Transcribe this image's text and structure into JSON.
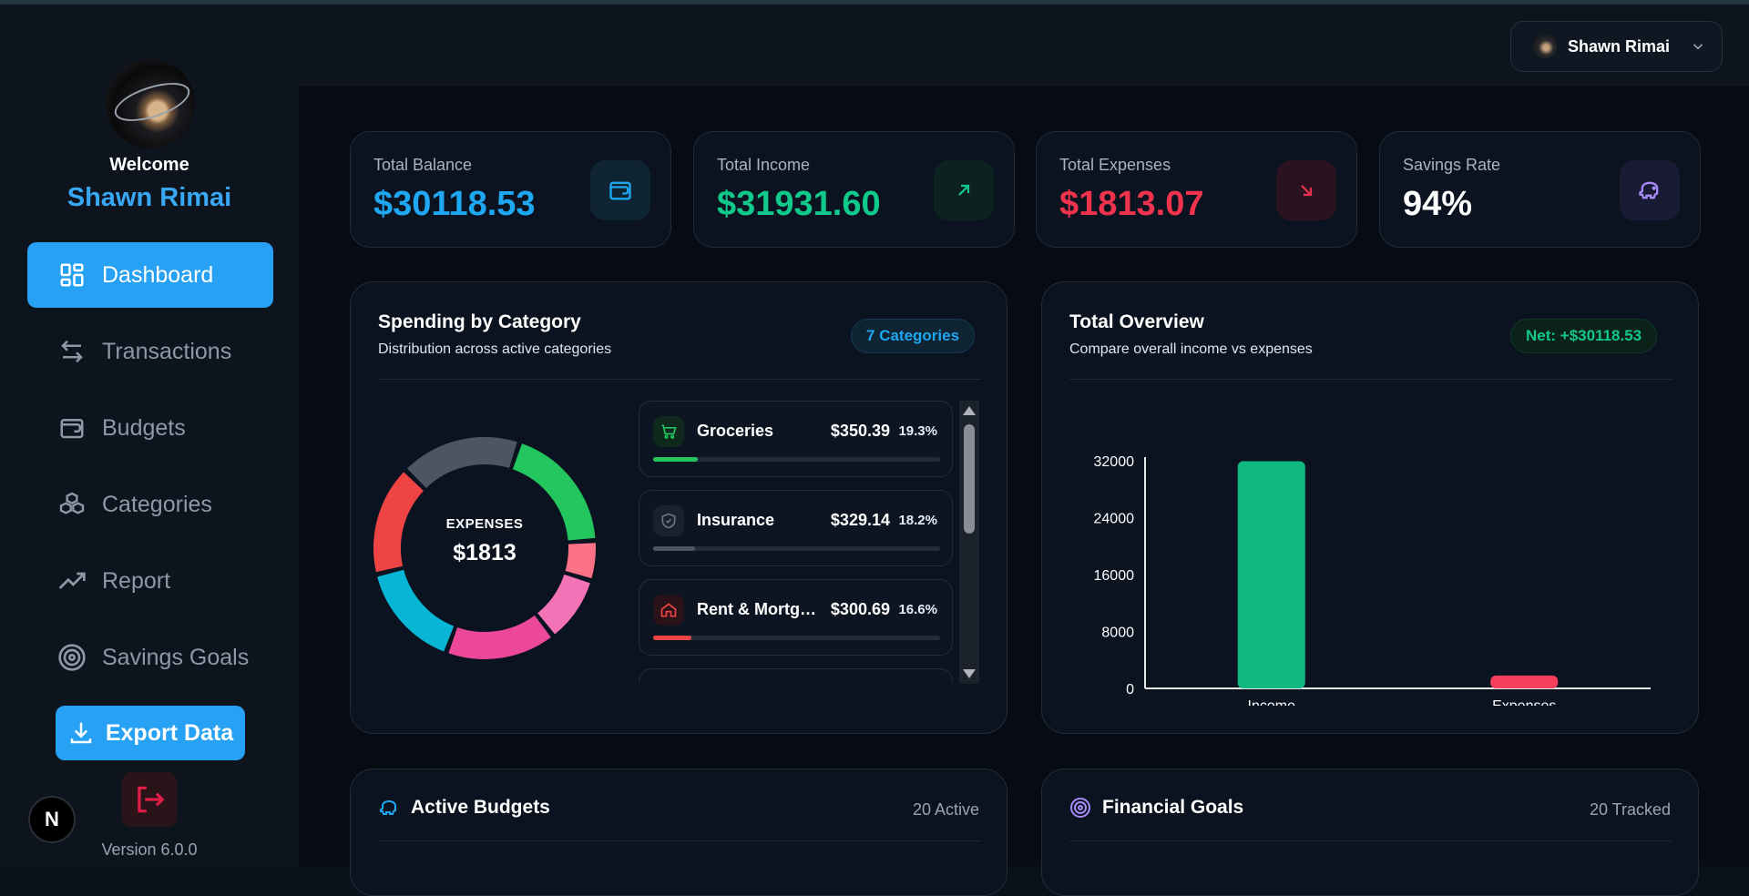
{
  "sidebar": {
    "welcome": "Welcome",
    "username": "Shawn Rimai",
    "nav": [
      {
        "label": "Dashboard",
        "icon": "dashboard-grid-icon",
        "active": true
      },
      {
        "label": "Transactions",
        "icon": "arrows-swap-icon"
      },
      {
        "label": "Budgets",
        "icon": "wallet-icon"
      },
      {
        "label": "Categories",
        "icon": "boxes-icon"
      },
      {
        "label": "Report",
        "icon": "trending-up-icon"
      },
      {
        "label": "Savings Goals",
        "icon": "target-icon"
      }
    ],
    "export_label": "Export Data",
    "version": "Version 6.0.0",
    "next_badge": "N"
  },
  "header": {
    "user_name": "Shawn Rimai"
  },
  "stats": [
    {
      "label": "Total Balance",
      "value": "$30118.53",
      "color": "#1ea7f2",
      "icon": "wallet-icon"
    },
    {
      "label": "Total Income",
      "value": "$31931.60",
      "color": "#10c98a",
      "icon": "arrow-up-right-icon"
    },
    {
      "label": "Total Expenses",
      "value": "$1813.07",
      "color": "#f0334d",
      "icon": "arrow-down-right-icon"
    },
    {
      "label": "Savings Rate",
      "value": "94%",
      "color": "#ffffff",
      "icon": "piggy-bank-icon"
    }
  ],
  "spending": {
    "title": "Spending by Category",
    "subtitle": "Distribution across active categories",
    "chip": "7 Categories",
    "donut_label": "EXPENSES",
    "donut_value": "$1813",
    "items": [
      {
        "name": "Groceries",
        "amount": "$350.39",
        "pct": "19.3%",
        "fraction": 0.193,
        "color": "#22c55e",
        "icon": "cart-icon"
      },
      {
        "name": "Insurance",
        "amount": "$329.14",
        "pct": "18.2%",
        "fraction": 0.182,
        "color": "#4b5563",
        "icon": "shield-icon"
      },
      {
        "name": "Rent & Mortgage",
        "amount": "$300.69",
        "pct": "16.6%",
        "fraction": 0.166,
        "color": "#ef4444",
        "icon": "home-icon"
      }
    ]
  },
  "overview": {
    "title": "Total Overview",
    "subtitle": "Compare overall income vs expenses",
    "chip": "Net: +$30118.53"
  },
  "chart_data": {
    "type": "bar",
    "categories": [
      "Income",
      "Expenses"
    ],
    "values": [
      31931.6,
      1813.07
    ],
    "colors": [
      "#10b981",
      "#f43f5e"
    ],
    "yticks": [
      "0",
      "8000",
      "16000",
      "24000",
      "32000"
    ],
    "ylim": [
      0,
      32000
    ],
    "grid": false
  },
  "donut_data": {
    "type": "pie",
    "segments": [
      {
        "color": "#22c55e",
        "fraction": 0.193
      },
      {
        "color": "#fb7185",
        "fraction": 0.06
      },
      {
        "color": "#f472b6",
        "fraction": 0.1
      },
      {
        "color": "#ec4899",
        "fraction": 0.166
      },
      {
        "color": "#06b6d4",
        "fraction": 0.16
      },
      {
        "color": "#ef4444",
        "fraction": 0.166
      },
      {
        "color": "#4b5563",
        "fraction": 0.182
      }
    ]
  },
  "budgets": {
    "title": "Active Budgets",
    "count": "20 Active"
  },
  "goals": {
    "title": "Financial Goals",
    "count": "20 Tracked"
  }
}
